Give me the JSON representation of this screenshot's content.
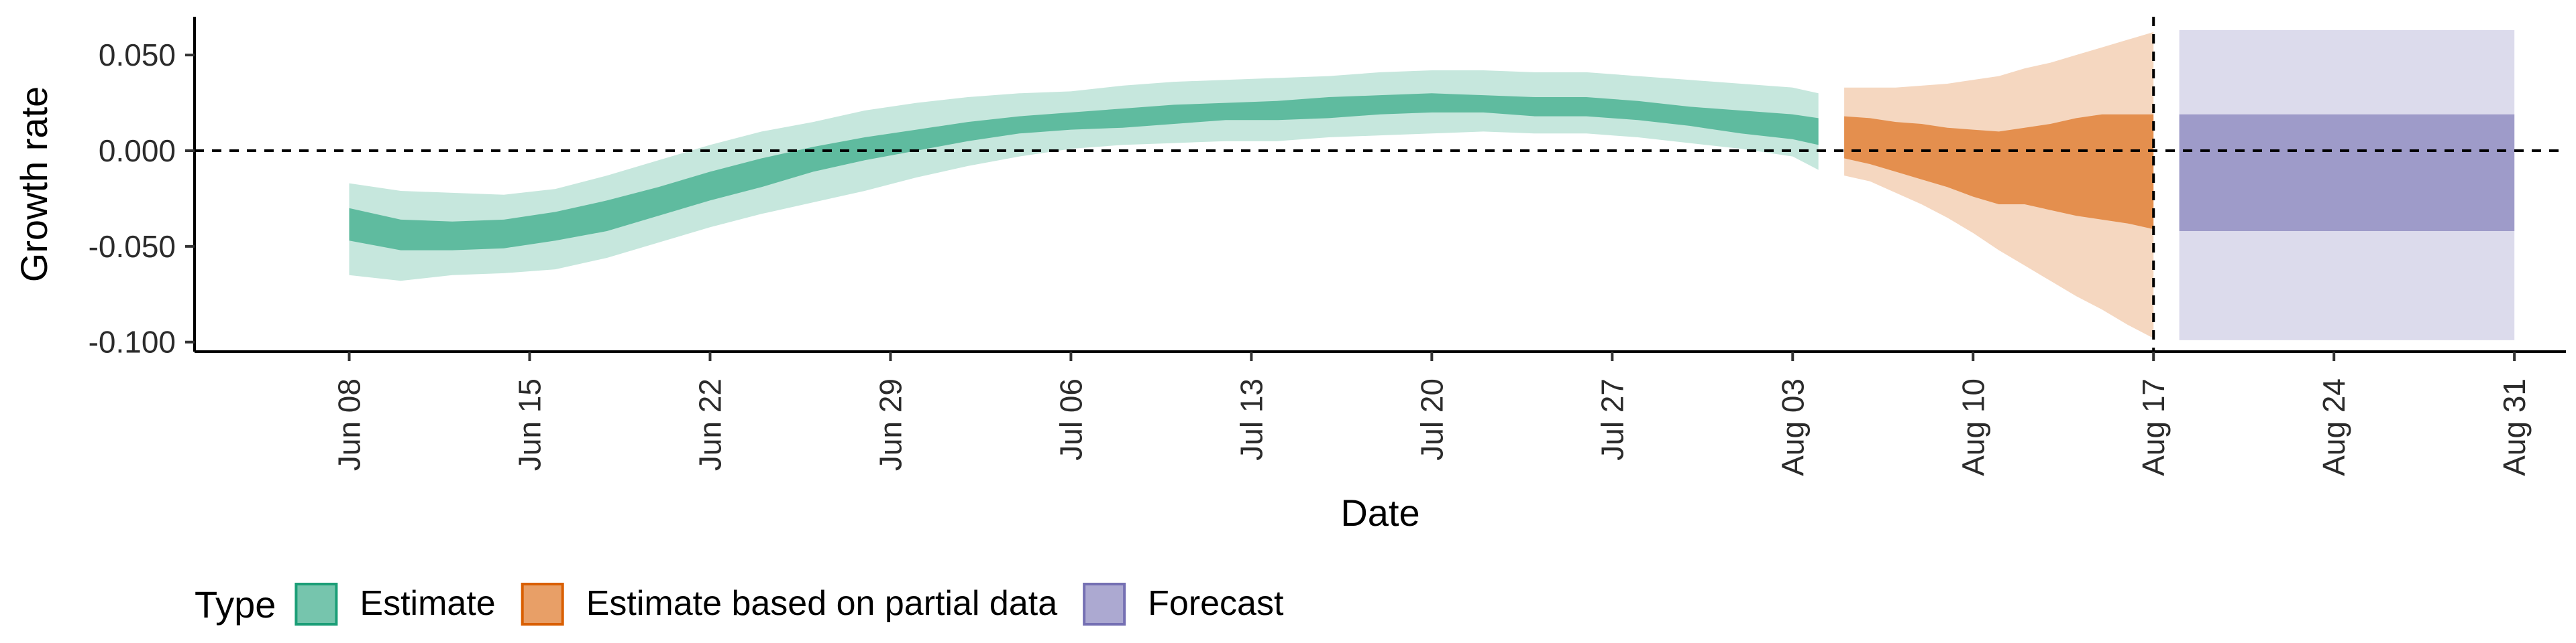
{
  "chart_data": {
    "type": "area",
    "xlabel": "Date",
    "ylabel": "Growth rate",
    "x_range": [
      "2020-06-02",
      "2020-09-02"
    ],
    "ylim": [
      -0.105,
      0.07
    ],
    "y_ticks": [
      0.05,
      0.0,
      -0.05,
      -0.1
    ],
    "y_tick_labels": [
      "0.050",
      "0.000",
      "-0.050",
      "-0.100"
    ],
    "x_ticks": [
      "2020-06-08",
      "2020-06-15",
      "2020-06-22",
      "2020-06-29",
      "2020-07-06",
      "2020-07-13",
      "2020-07-20",
      "2020-07-27",
      "2020-08-03",
      "2020-08-10",
      "2020-08-17",
      "2020-08-24",
      "2020-08-31"
    ],
    "x_tick_labels": [
      "Jun 08",
      "Jun 15",
      "Jun 22",
      "Jun 29",
      "Jul 06",
      "Jul 13",
      "Jul 20",
      "Jul 27",
      "Aug 03",
      "Aug 10",
      "Aug 17",
      "Aug 24",
      "Aug 31"
    ],
    "reference_lines": {
      "horizontal_y": 0.0,
      "vertical_x": "2020-08-17"
    },
    "grid": false,
    "legend": {
      "title": "Type",
      "placement": "bottom-left",
      "entries": [
        {
          "label": "Estimate",
          "color": "#1b9e77"
        },
        {
          "label": "Estimate based on partial data",
          "color": "#d95f02"
        },
        {
          "label": "Forecast",
          "color": "#7570b3"
        }
      ]
    },
    "series": [
      {
        "type_label": "Estimate",
        "color": "#1b9e77",
        "x": [
          "2020-06-08",
          "2020-06-10",
          "2020-06-12",
          "2020-06-14",
          "2020-06-16",
          "2020-06-18",
          "2020-06-20",
          "2020-06-22",
          "2020-06-24",
          "2020-06-26",
          "2020-06-28",
          "2020-06-30",
          "2020-07-02",
          "2020-07-04",
          "2020-07-06",
          "2020-07-08",
          "2020-07-10",
          "2020-07-12",
          "2020-07-14",
          "2020-07-16",
          "2020-07-18",
          "2020-07-20",
          "2020-07-22",
          "2020-07-24",
          "2020-07-26",
          "2020-07-28",
          "2020-07-30",
          "2020-08-01",
          "2020-08-03",
          "2020-08-04"
        ],
        "lower_90": [
          -0.065,
          -0.068,
          -0.065,
          -0.064,
          -0.062,
          -0.056,
          -0.048,
          -0.04,
          -0.033,
          -0.027,
          -0.021,
          -0.014,
          -0.008,
          -0.003,
          0.001,
          0.003,
          0.004,
          0.005,
          0.005,
          0.007,
          0.008,
          0.009,
          0.01,
          0.009,
          0.009,
          0.007,
          0.004,
          0.001,
          -0.003,
          -0.01
        ],
        "lower_50": [
          -0.047,
          -0.052,
          -0.052,
          -0.051,
          -0.047,
          -0.042,
          -0.034,
          -0.026,
          -0.019,
          -0.011,
          -0.005,
          0.0,
          0.005,
          0.009,
          0.011,
          0.012,
          0.014,
          0.016,
          0.016,
          0.017,
          0.019,
          0.02,
          0.02,
          0.018,
          0.018,
          0.016,
          0.013,
          0.009,
          0.006,
          0.003
        ],
        "upper_50": [
          -0.03,
          -0.036,
          -0.037,
          -0.036,
          -0.032,
          -0.026,
          -0.019,
          -0.011,
          -0.004,
          0.002,
          0.007,
          0.011,
          0.015,
          0.018,
          0.02,
          0.022,
          0.024,
          0.025,
          0.026,
          0.028,
          0.029,
          0.03,
          0.029,
          0.028,
          0.028,
          0.026,
          0.023,
          0.021,
          0.019,
          0.017
        ],
        "upper_90": [
          -0.017,
          -0.021,
          -0.022,
          -0.023,
          -0.02,
          -0.013,
          -0.005,
          0.003,
          0.01,
          0.015,
          0.021,
          0.025,
          0.028,
          0.03,
          0.031,
          0.034,
          0.036,
          0.037,
          0.038,
          0.039,
          0.041,
          0.042,
          0.042,
          0.041,
          0.041,
          0.039,
          0.037,
          0.035,
          0.033,
          0.03
        ]
      },
      {
        "type_label": "Estimate based on partial data",
        "color": "#d95f02",
        "x": [
          "2020-08-05",
          "2020-08-06",
          "2020-08-07",
          "2020-08-08",
          "2020-08-09",
          "2020-08-10",
          "2020-08-11",
          "2020-08-12",
          "2020-08-13",
          "2020-08-14",
          "2020-08-15",
          "2020-08-16",
          "2020-08-17"
        ],
        "lower_90": [
          -0.013,
          -0.016,
          -0.022,
          -0.028,
          -0.035,
          -0.043,
          -0.052,
          -0.06,
          -0.068,
          -0.076,
          -0.083,
          -0.091,
          -0.098
        ],
        "lower_50": [
          -0.004,
          -0.007,
          -0.011,
          -0.015,
          -0.019,
          -0.024,
          -0.028,
          -0.028,
          -0.031,
          -0.034,
          -0.036,
          -0.038,
          -0.041
        ],
        "upper_50": [
          0.018,
          0.017,
          0.015,
          0.014,
          0.012,
          0.011,
          0.01,
          0.012,
          0.014,
          0.017,
          0.019,
          0.019,
          0.019
        ],
        "upper_90": [
          0.033,
          0.033,
          0.033,
          0.034,
          0.035,
          0.037,
          0.039,
          0.043,
          0.046,
          0.05,
          0.054,
          0.058,
          0.062
        ]
      },
      {
        "type_label": "Forecast",
        "color": "#7570b3",
        "x": [
          "2020-08-18",
          "2020-08-31"
        ],
        "lower_90": [
          -0.099,
          -0.099
        ],
        "lower_50": [
          -0.042,
          -0.042
        ],
        "upper_50": [
          0.019,
          0.019
        ],
        "upper_90": [
          0.063,
          0.063
        ]
      }
    ]
  }
}
